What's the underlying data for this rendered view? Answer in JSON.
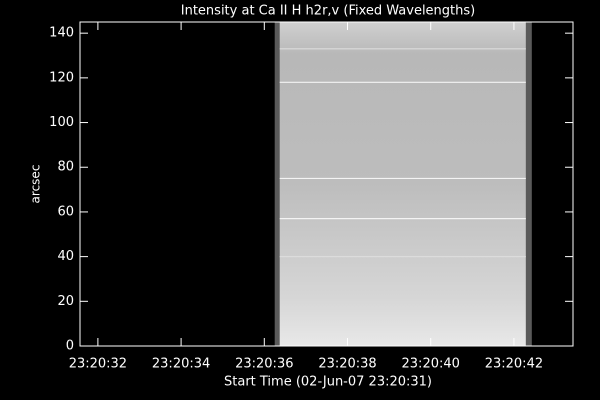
{
  "chart_data": {
    "type": "image",
    "title": "Intensity at Ca II H h2r,v (Fixed Wavelengths)",
    "x_label": "Start Time (02-Jun-07 23:20:31)",
    "y_label": "arcsec",
    "xlim": [
      0.57,
      12.42
    ],
    "xticks": [
      {
        "value": 1,
        "label": "23:20:32"
      },
      {
        "value": 3,
        "label": "23:20:34"
      },
      {
        "value": 5,
        "label": "23:20:36"
      },
      {
        "value": 7,
        "label": "23:20:38"
      },
      {
        "value": 9,
        "label": "23:20:40"
      },
      {
        "value": 11,
        "label": "23:20:42"
      }
    ],
    "ylim": [
      0,
      145
    ],
    "yticks": [
      0,
      20,
      40,
      60,
      80,
      100,
      120,
      140
    ],
    "data_extent_x": [
      5.25,
      11.43
    ],
    "bright_rows": [
      133,
      118,
      75,
      57,
      40
    ]
  }
}
